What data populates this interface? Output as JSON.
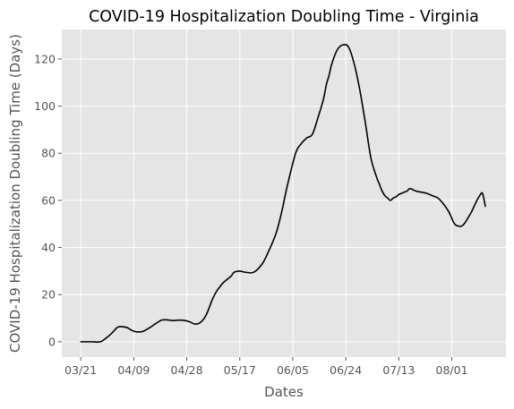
{
  "chart_data": {
    "type": "line",
    "title": "COVID-19 Hospitalization Doubling Time - Virginia",
    "xlabel": "Dates",
    "ylabel": "COVID-19 Hospitalization Doubling Time (Days)",
    "x_ticks": [
      "03/21",
      "04/09",
      "04/28",
      "05/17",
      "06/05",
      "06/24",
      "07/13",
      "08/01"
    ],
    "x_tick_days": [
      0,
      19,
      38,
      57,
      76,
      95,
      114,
      133
    ],
    "y_ticks": [
      0,
      20,
      40,
      60,
      80,
      100,
      120
    ],
    "xlim": [
      -6.8,
      152.4
    ],
    "ylim": [
      -6.5,
      132.5
    ],
    "grid": true,
    "colors": {
      "background": "#e5e5e5",
      "grid": "#ffffff",
      "line": "#000000"
    },
    "series": [
      {
        "name": "",
        "x": [
          0,
          4,
          7,
          9,
          11,
          13,
          14,
          15,
          16,
          17,
          18,
          19,
          20,
          21,
          22,
          23,
          24,
          25,
          27,
          29,
          31,
          33,
          35,
          37,
          39,
          41,
          43,
          45,
          47,
          48,
          49,
          50,
          51,
          52,
          53,
          54,
          55,
          57,
          59,
          62,
          65,
          67,
          70,
          72,
          74,
          77,
          79,
          81,
          83,
          85,
          87,
          88,
          89,
          90,
          92,
          94,
          96,
          98,
          100,
          102,
          104,
          106,
          107,
          108,
          109,
          110,
          111,
          112,
          113,
          114,
          115,
          116,
          117,
          118,
          120,
          122,
          124,
          126,
          128,
          130,
          132,
          134,
          136,
          137,
          138,
          139,
          140,
          141,
          142,
          143,
          144,
          145
        ],
        "y": [
          0,
          0,
          0,
          1.5,
          3.5,
          6,
          6.4,
          6.4,
          6.2,
          5.8,
          5,
          4.5,
          4.2,
          4.2,
          4.3,
          4.8,
          5.5,
          6.2,
          7.8,
          9.2,
          9.3,
          9,
          9.2,
          9.1,
          8.5,
          7.5,
          8.3,
          11.5,
          17.5,
          20,
          22,
          23.5,
          25,
          26,
          27,
          28,
          29.5,
          30,
          29.5,
          29.5,
          33,
          37.5,
          46,
          55,
          66,
          80,
          84,
          86.5,
          88,
          95,
          103,
          109,
          113,
          118,
          124,
          126,
          125,
          118,
          107,
          93,
          78,
          70,
          67,
          64,
          62,
          61,
          60,
          61,
          61.5,
          62.5,
          63,
          63.5,
          64,
          65,
          64,
          63.5,
          63,
          62,
          61,
          58.5,
          55,
          50,
          49,
          49.5,
          51,
          53,
          55,
          57.5,
          60,
          62,
          63,
          57.5
        ]
      }
    ]
  }
}
